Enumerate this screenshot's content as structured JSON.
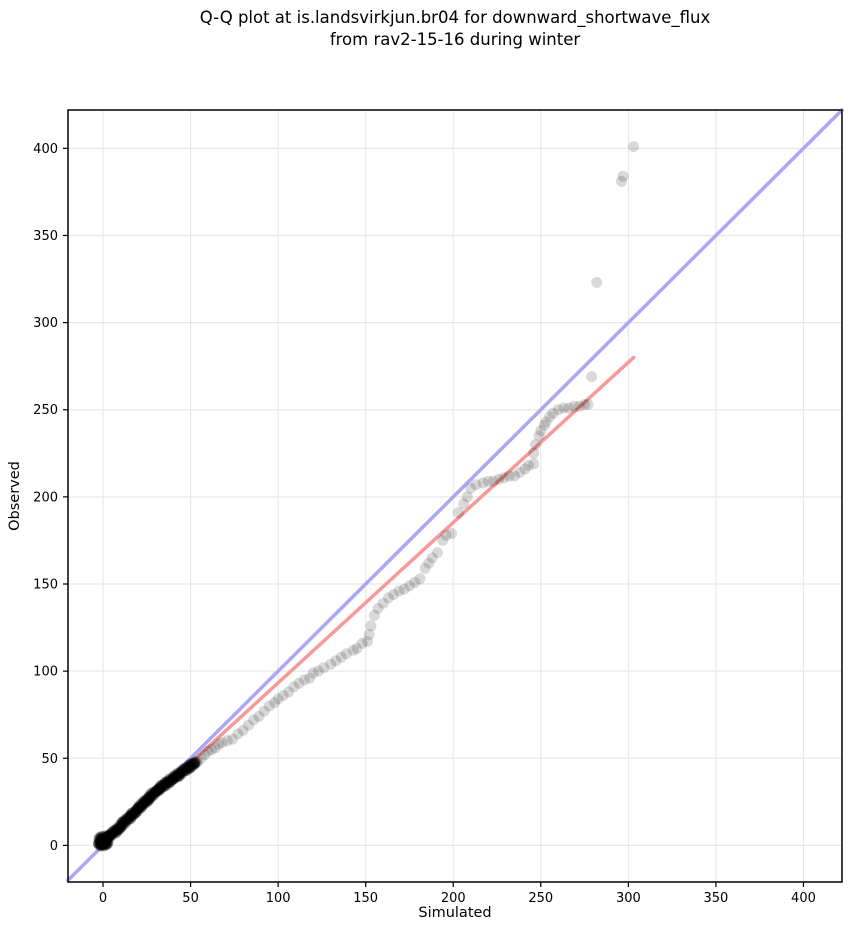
{
  "title": {
    "line1": "Q-Q plot at is.landsvirkjun.br04 for downward_shortwave_flux",
    "line2": "from rav2-15-16 during winter"
  },
  "chart_data": {
    "type": "scatter",
    "title": "Q-Q plot at is.landsvirkjun.br04 for downward_shortwave_flux from rav2-15-16 during winter",
    "xlabel": "Simulated",
    "ylabel": "Observed",
    "xlim": [
      -20,
      422
    ],
    "ylim": [
      -21,
      422
    ],
    "xticks": [
      0,
      50,
      100,
      150,
      200,
      250,
      300,
      350,
      400
    ],
    "yticks": [
      0,
      50,
      100,
      150,
      200,
      250,
      300,
      350,
      400
    ],
    "grid": true,
    "grid_color": "#e8e8e8",
    "spine_color": "#000000",
    "legend": "none",
    "identity_line": {
      "name": "identity y=x",
      "color": "#a8a8f5",
      "width": 3.5,
      "from": [
        -20,
        -20
      ],
      "to": [
        422,
        422
      ]
    },
    "fit_line": {
      "name": "qq fit",
      "color": "#f79a9a",
      "width": 3.5,
      "from": [
        -2,
        -0.5
      ],
      "to": [
        303,
        280
      ]
    },
    "marker": {
      "color": "#000000",
      "opacity": 0.15,
      "radius_px": 5.5
    },
    "points": [
      [
        52,
        47
      ],
      [
        54,
        48
      ],
      [
        56,
        50
      ],
      [
        58,
        52
      ],
      [
        60,
        54
      ],
      [
        62,
        55
      ],
      [
        64,
        56
      ],
      [
        66,
        58
      ],
      [
        68,
        59
      ],
      [
        71,
        60
      ],
      [
        74,
        61
      ],
      [
        77,
        64
      ],
      [
        80,
        66
      ],
      [
        83,
        69
      ],
      [
        86,
        72
      ],
      [
        89,
        74
      ],
      [
        92,
        77
      ],
      [
        95,
        80
      ],
      [
        98,
        82
      ],
      [
        100,
        84
      ],
      [
        103,
        86
      ],
      [
        106,
        88
      ],
      [
        109,
        91
      ],
      [
        112,
        93
      ],
      [
        115,
        95
      ],
      [
        118,
        96
      ],
      [
        120,
        99
      ],
      [
        123,
        100
      ],
      [
        126,
        102
      ],
      [
        130,
        104
      ],
      [
        133,
        106
      ],
      [
        136,
        108
      ],
      [
        139,
        110
      ],
      [
        143,
        112
      ],
      [
        145,
        113
      ],
      [
        148,
        116
      ],
      [
        151,
        117
      ],
      [
        152,
        121
      ],
      [
        153,
        126
      ],
      [
        155,
        132
      ],
      [
        157,
        136
      ],
      [
        160,
        139
      ],
      [
        163,
        142
      ],
      [
        166,
        144
      ],
      [
        169,
        146
      ],
      [
        172,
        147
      ],
      [
        175,
        149
      ],
      [
        178,
        151
      ],
      [
        181,
        153
      ],
      [
        184,
        159
      ],
      [
        186,
        162
      ],
      [
        188,
        165
      ],
      [
        191,
        168
      ],
      [
        194,
        175
      ],
      [
        196,
        178
      ],
      [
        199,
        179
      ],
      [
        203,
        191
      ],
      [
        206,
        196
      ],
      [
        208,
        200
      ],
      [
        210,
        205
      ],
      [
        213,
        207
      ],
      [
        217,
        208
      ],
      [
        220,
        209
      ],
      [
        223,
        209
      ],
      [
        226,
        210
      ],
      [
        229,
        211
      ],
      [
        232,
        212
      ],
      [
        235,
        212
      ],
      [
        238,
        214
      ],
      [
        241,
        216
      ],
      [
        243,
        218
      ],
      [
        246,
        219
      ],
      [
        246,
        225
      ],
      [
        247,
        230
      ],
      [
        249,
        235
      ],
      [
        250,
        238
      ],
      [
        252,
        241
      ],
      [
        253,
        243
      ],
      [
        255,
        246
      ],
      [
        257,
        248
      ],
      [
        260,
        250
      ],
      [
        263,
        251
      ],
      [
        266,
        251
      ],
      [
        269,
        252
      ],
      [
        272,
        252
      ],
      [
        275,
        253
      ],
      [
        277,
        253
      ],
      [
        279,
        269
      ],
      [
        282,
        323
      ],
      [
        296,
        381
      ],
      [
        297,
        384
      ],
      [
        303,
        401
      ]
    ],
    "dense_cluster": {
      "description": "heavily overlapping near-black points hugging the identity line at low flux",
      "path": [
        [
          -2,
          0
        ],
        [
          3,
          5
        ],
        [
          8,
          9
        ],
        [
          15,
          16
        ],
        [
          22,
          23
        ],
        [
          30,
          31
        ],
        [
          38,
          37
        ],
        [
          45,
          42
        ],
        [
          53,
          48
        ]
      ],
      "count": 380,
      "jitter": 0.9,
      "blob": {
        "center": [
          0,
          2.5
        ],
        "radius": 3.2,
        "count": 80
      }
    }
  }
}
